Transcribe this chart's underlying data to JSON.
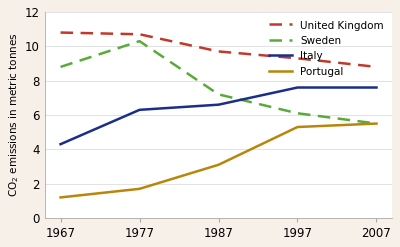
{
  "years": [
    1967,
    1977,
    1987,
    1997,
    2007
  ],
  "united_kingdom": [
    10.8,
    10.7,
    9.7,
    9.3,
    8.8
  ],
  "sweden": [
    8.8,
    10.3,
    7.2,
    6.1,
    5.5
  ],
  "italy": [
    4.3,
    6.3,
    6.6,
    7.6,
    7.6
  ],
  "portugal": [
    1.2,
    1.7,
    3.1,
    5.3,
    5.5
  ],
  "colors": {
    "united_kingdom": "#c0392b",
    "sweden": "#5aaa3a",
    "italy": "#1a2e8a",
    "portugal": "#b8860b"
  },
  "ylabel": "CO$_2$ emissions in metric tonnes",
  "ylim": [
    0,
    12
  ],
  "yticks": [
    0,
    2,
    4,
    6,
    8,
    10,
    12
  ],
  "xticks": [
    1967,
    1977,
    1987,
    1997,
    2007
  ],
  "legend_labels": [
    "United Kingdom",
    "Sweden",
    "Italy",
    "Portugal"
  ],
  "background_color": "#ffffff",
  "fig_bg_color": "#f7f0e8"
}
